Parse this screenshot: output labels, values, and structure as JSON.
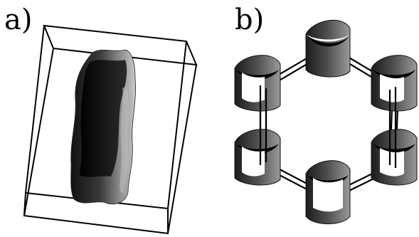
{
  "panels": [
    {
      "label": "a)"
    },
    {
      "label": "b)"
    }
  ],
  "colors": {
    "surface_dark": "#1a1a1a",
    "surface_mid": "#5a5a5a",
    "surface_light": "#d8d8d8",
    "frame": "#000000",
    "background": "#ffffff"
  }
}
